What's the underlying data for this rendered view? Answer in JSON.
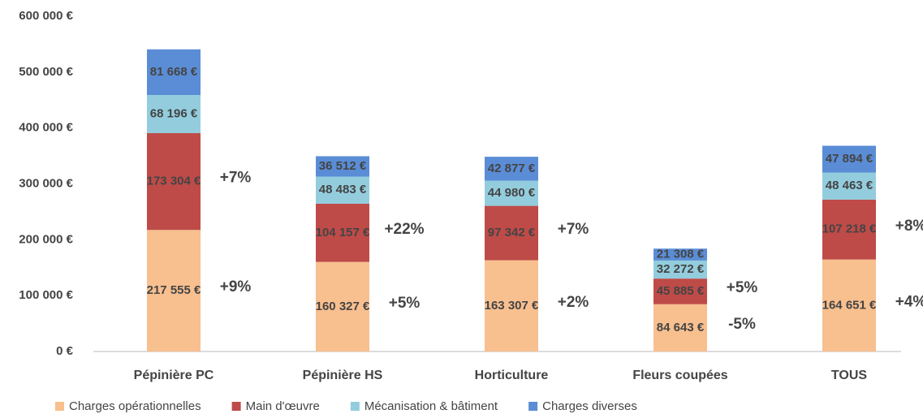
{
  "chart_data": {
    "type": "stacked_bar",
    "categories": [
      "Pépinière PC",
      "Pépinière HS",
      "Horticulture",
      "Fleurs coupées",
      "TOUS"
    ],
    "series": [
      {
        "name": "Charges opérationnelles",
        "color": "#f8bf8f",
        "values": [
          217555,
          160327,
          163307,
          84643,
          164651
        ],
        "value_labels": [
          "217 555 €",
          "160 327 €",
          "163 307 €",
          "84 643 €",
          "164 651 €"
        ],
        "changes": [
          "+9%",
          "+5%",
          "+2%",
          "-5%",
          "+4%"
        ],
        "change_colors": [
          "#e8552d",
          "#e8552d",
          "#f2b134",
          "#17a194",
          "#e8552d"
        ]
      },
      {
        "name": "Main d'œuvre",
        "color": "#be4b48",
        "values": [
          173304,
          104157,
          97342,
          45885,
          107218
        ],
        "value_labels": [
          "173 304 €",
          "104 157 €",
          "97 342 €",
          "45 885 €",
          "107 218 €"
        ],
        "changes": [
          "+7%",
          "+22%",
          "+7%",
          "+5%",
          "+8%"
        ],
        "change_colors": [
          "#e8552d",
          "#e8552d",
          "#e8552d",
          "#e8552d",
          "#e8552d"
        ]
      },
      {
        "name": "Mécanisation & bâtiment",
        "color": "#93cddd",
        "values": [
          68196,
          48483,
          44980,
          32272,
          48463
        ],
        "value_labels": [
          "68 196 €",
          "48 483 €",
          "44 980 €",
          "32 272 €",
          "48 463 €"
        ]
      },
      {
        "name": "Charges diverses",
        "color": "#5a8dd6",
        "values": [
          81668,
          36512,
          42877,
          21308,
          47894
        ],
        "value_labels": [
          "81 668 €",
          "36 512 €",
          "42 877 €",
          "21 308 €",
          "47 894 €"
        ]
      }
    ],
    "ylim": [
      0,
      600000
    ],
    "yticks": [
      {
        "value": 0,
        "label": "0 €"
      },
      {
        "value": 100000,
        "label": "100 000 €"
      },
      {
        "value": 200000,
        "label": "200 000 €"
      },
      {
        "value": 300000,
        "label": "300 000 €"
      },
      {
        "value": 400000,
        "label": "400 000 €"
      },
      {
        "value": 500000,
        "label": "500 000 €"
      },
      {
        "value": 600000,
        "label": "600 000 €"
      }
    ],
    "grid": false,
    "legend": "bottom"
  }
}
